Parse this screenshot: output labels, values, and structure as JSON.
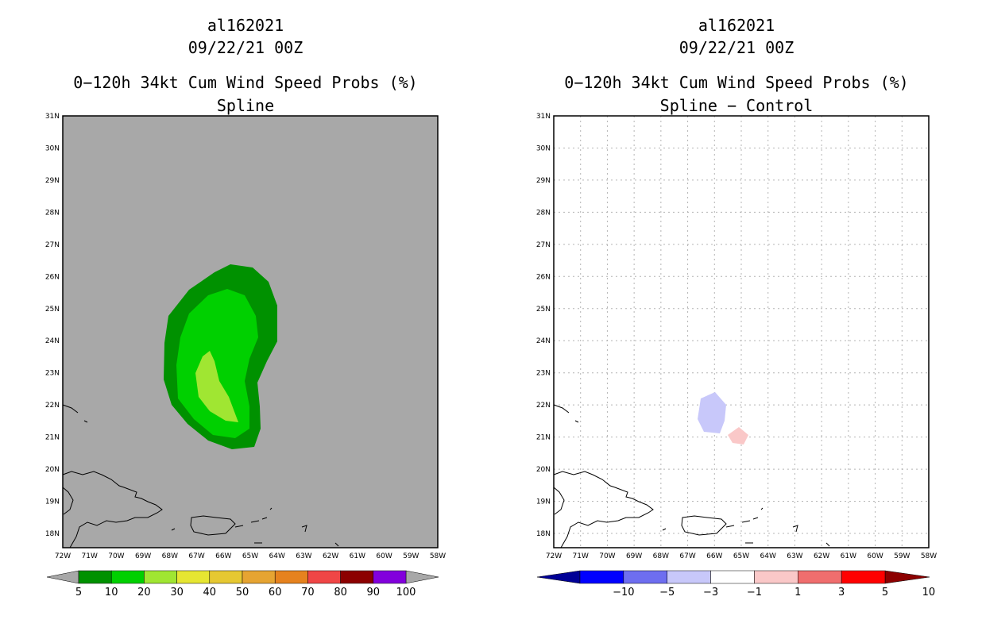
{
  "panels": [
    {
      "title": "al162021",
      "datetime": "09/22/21 00Z",
      "product": "0−120h 34kt Cum Wind Speed Probs (%)",
      "subtitle": "Spline"
    },
    {
      "title": "al162021",
      "datetime": "09/22/21 00Z",
      "product": "0−120h 34kt Cum Wind Speed Probs (%)",
      "subtitle": "Spline − Control"
    }
  ],
  "map": {
    "lon_labels": [
      "72W",
      "71W",
      "70W",
      "69W",
      "68W",
      "67W",
      "66W",
      "65W",
      "64W",
      "63W",
      "62W",
      "61W",
      "60W",
      "59W",
      "58W"
    ],
    "lat_labels": [
      "18N",
      "19N",
      "20N",
      "21N",
      "22N",
      "23N",
      "24N",
      "25N",
      "26N",
      "27N",
      "28N",
      "29N",
      "30N",
      "31N"
    ]
  },
  "left_colorbar": {
    "labels": [
      "5",
      "10",
      "20",
      "30",
      "40",
      "50",
      "60",
      "70",
      "80",
      "90",
      "100"
    ],
    "colors": [
      "#009100",
      "#00d000",
      "#a0e632",
      "#e6e632",
      "#e6c832",
      "#e6a432",
      "#e6821e",
      "#f04646",
      "#8c0000",
      "#8200dc"
    ],
    "background": "#a8a8a8"
  },
  "right_colorbar": {
    "labels": [
      "−10",
      "−5",
      "−3",
      "−1",
      "1",
      "3",
      "5",
      "10"
    ],
    "colors": [
      "#000096",
      "#0000ff",
      "#6e6ef0",
      "#c8c8fa",
      "#ffffff",
      "#fac8c8",
      "#f06e6e",
      "#ff0000",
      "#8c0000"
    ]
  }
}
